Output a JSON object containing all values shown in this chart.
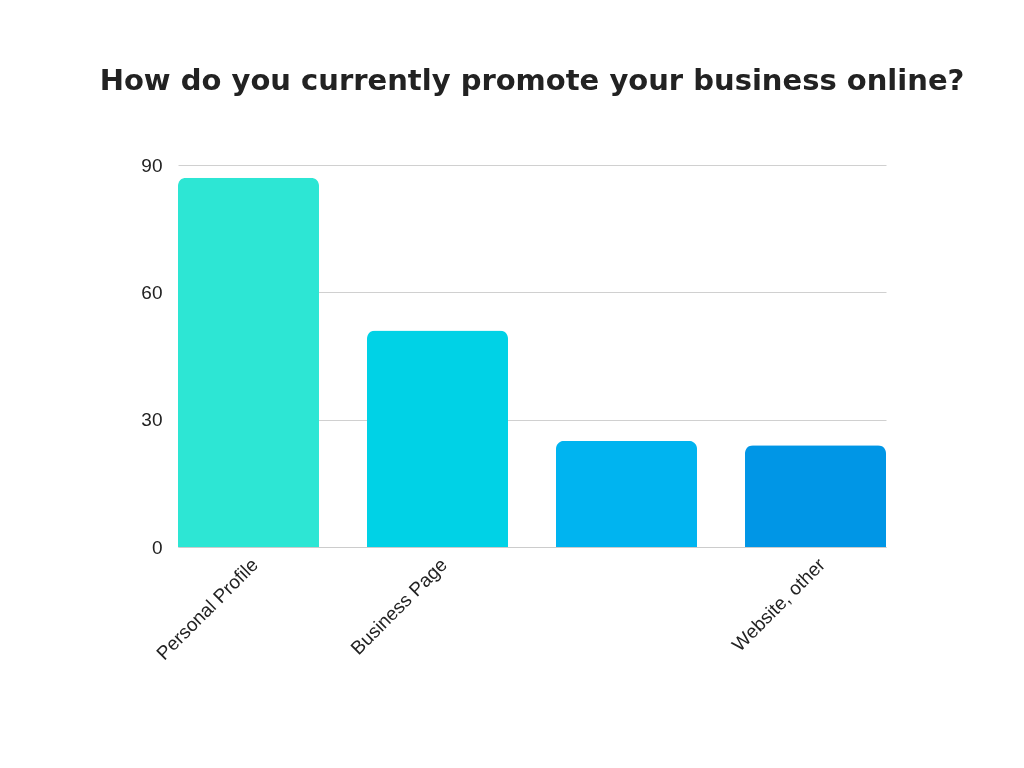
{
  "chart_data": {
    "type": "bar",
    "title": "How do you currently promote your business online?",
    "categories": [
      "Personal Profile",
      "Business Page",
      null,
      "Website, other"
    ],
    "values": [
      87,
      51,
      25,
      24
    ],
    "colors": [
      "#2de6d4",
      "#00d2e6",
      "#00b4f0",
      "#0096e6"
    ],
    "ylim": [
      0,
      90
    ],
    "yticks": [
      0,
      30,
      60,
      90
    ],
    "grid": "y"
  }
}
